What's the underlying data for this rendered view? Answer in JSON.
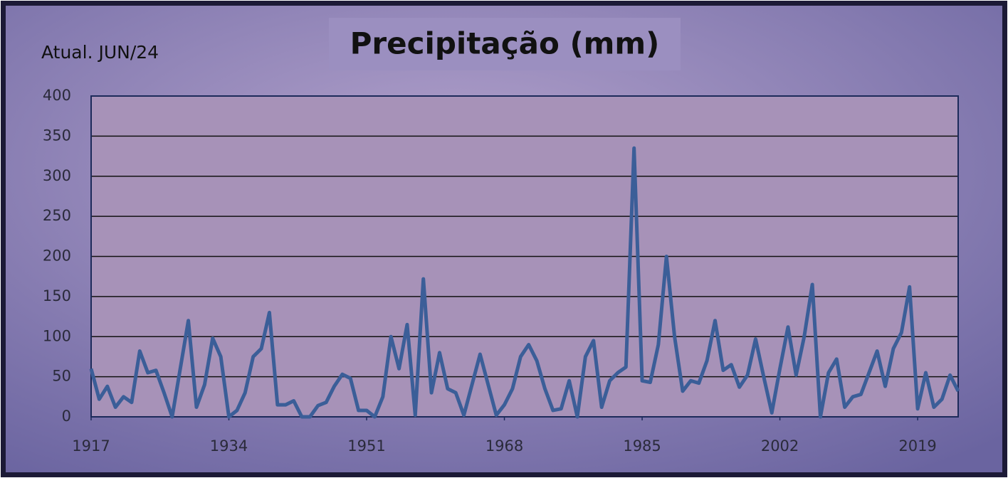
{
  "chart_data": {
    "type": "line",
    "title": "Precipitação (mm)",
    "annotation": "Atual. JUN/24",
    "x": [
      1917,
      1918,
      1919,
      1920,
      1921,
      1922,
      1923,
      1924,
      1925,
      1926,
      1927,
      1928,
      1929,
      1930,
      1931,
      1932,
      1933,
      1934,
      1935,
      1936,
      1937,
      1938,
      1939,
      1940,
      1941,
      1942,
      1943,
      1944,
      1945,
      1946,
      1947,
      1948,
      1949,
      1950,
      1951,
      1952,
      1953,
      1954,
      1955,
      1956,
      1957,
      1958,
      1959,
      1960,
      1961,
      1962,
      1963,
      1964,
      1965,
      1966,
      1967,
      1968,
      1969,
      1970,
      1971,
      1972,
      1973,
      1974,
      1975,
      1976,
      1977,
      1978,
      1979,
      1980,
      1981,
      1982,
      1983,
      1984,
      1985,
      1986,
      1987,
      1988,
      1989,
      1990,
      1991,
      1992,
      1993,
      1994,
      1995,
      1996,
      1997,
      1998,
      1999,
      2000,
      2001,
      2002,
      2003,
      2004,
      2005,
      2006,
      2007,
      2008,
      2009,
      2010,
      2011,
      2012,
      2013,
      2014,
      2015,
      2016,
      2017,
      2018,
      2019,
      2020,
      2021,
      2022,
      2023,
      2024
    ],
    "series": [
      {
        "name": "Precipitação",
        "color": "#3b5e98",
        "values": [
          60,
          22,
          38,
          12,
          25,
          18,
          82,
          55,
          58,
          30,
          0,
          60,
          120,
          12,
          40,
          98,
          75,
          0,
          8,
          30,
          75,
          85,
          130,
          15,
          15,
          20,
          0,
          0,
          14,
          18,
          38,
          53,
          48,
          8,
          8,
          0,
          25,
          100,
          60,
          115,
          2,
          172,
          30,
          80,
          35,
          30,
          2,
          40,
          78,
          40,
          2,
          15,
          35,
          75,
          90,
          70,
          35,
          8,
          10,
          45,
          0,
          75,
          95,
          12,
          45,
          55,
          62,
          335,
          45,
          43,
          90,
          200,
          100,
          32,
          45,
          42,
          70,
          120,
          58,
          65,
          37,
          52,
          97,
          50,
          5,
          60,
          112,
          52,
          100,
          165,
          0,
          55,
          72,
          12,
          25,
          28,
          55,
          82,
          38,
          85,
          105,
          162,
          10,
          55,
          12,
          22,
          52,
          32
        ]
      }
    ],
    "xlim": [
      1917,
      2024
    ],
    "xticks": [
      1917,
      1934,
      1951,
      1968,
      1985,
      2002,
      2019
    ],
    "ylim": [
      0,
      400
    ],
    "yticks": [
      0,
      50,
      100,
      150,
      200,
      250,
      300,
      350,
      400
    ],
    "grid": true
  }
}
